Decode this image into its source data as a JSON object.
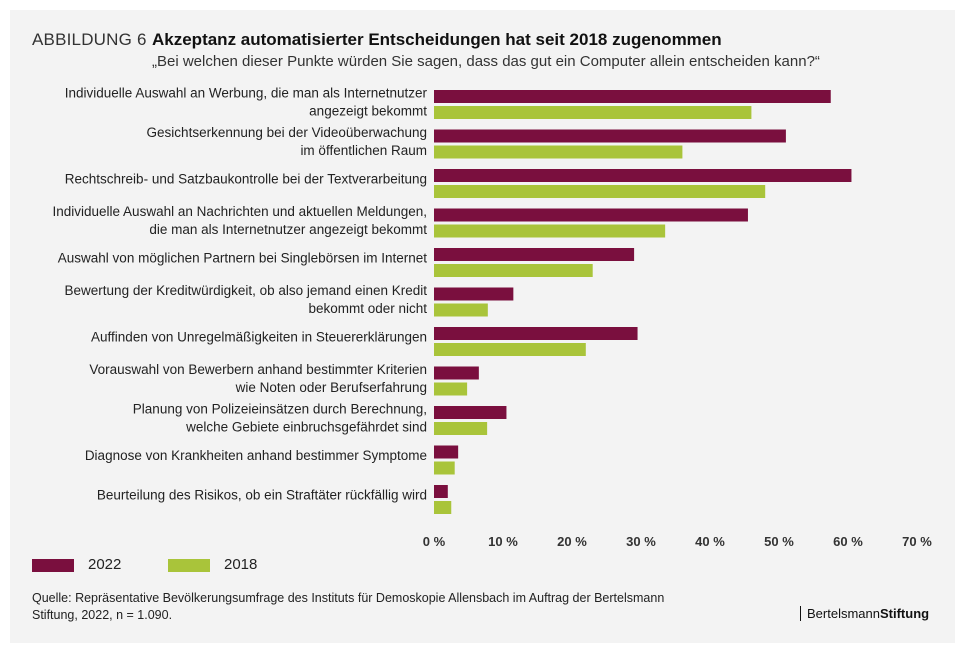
{
  "header": {
    "figure_label": "ABBILDUNG 6",
    "title": "Akzeptanz automatisierter Entscheidungen hat seit 2018 zugenommen",
    "subtitle": "„Bei welchen dieser Punkte würden Sie sagen, dass das gut ein Computer allein entscheiden kann?“"
  },
  "chart_data": {
    "type": "bar",
    "orientation": "horizontal",
    "categories": [
      [
        "Individuelle Auswahl an Werbung, die man als Internetnutzer",
        "angezeigt bekommt"
      ],
      [
        "Gesichtserkennung bei der Videoüberwachung",
        "im öffentlichen Raum"
      ],
      [
        "Rechtschreib- und Satzbaukontrolle bei der Textverarbeitung"
      ],
      [
        "Individuelle Auswahl an Nachrichten und aktuellen Meldungen,",
        "die man als Internetnutzer angezeigt bekommt"
      ],
      [
        "Auswahl von möglichen Partnern bei Singlebörsen im Internet"
      ],
      [
        "Bewertung der Kreditwürdigkeit, ob also jemand einen Kredit",
        "bekommt oder nicht"
      ],
      [
        "Auffinden von Unregelmäßigkeiten in Steuererklärungen"
      ],
      [
        "Vorauswahl von Bewerbern anhand bestimmter Kriterien",
        "wie Noten oder Berufserfahrung"
      ],
      [
        "Planung von Polizeieinsätzen durch Berechnung,",
        "welche Gebiete einbruchsgefährdet sind"
      ],
      [
        "Diagnose von Krankheiten anhand bestimmer Symptome"
      ],
      [
        "Beurteilung des Risikos, ob ein Straftäter rückfällig wird"
      ]
    ],
    "series": [
      {
        "name": "2022",
        "color": "#7a0f3e",
        "values": [
          57.5,
          51,
          60.5,
          45.5,
          29,
          11.5,
          29.5,
          6.5,
          10.5,
          3.5,
          2
        ]
      },
      {
        "name": "2018",
        "color": "#a9c43a",
        "values": [
          46,
          36,
          48,
          33.5,
          23,
          7.8,
          22,
          4.8,
          7.7,
          3,
          2.5
        ]
      }
    ],
    "xlim": [
      0,
      70
    ],
    "ticks": [
      0,
      10,
      20,
      30,
      40,
      50,
      60,
      70
    ],
    "tick_labels": [
      "0 %",
      "10 %",
      "20 %",
      "30 %",
      "40 %",
      "50 %",
      "60 %",
      "70 %"
    ],
    "grid": false,
    "legend_position": "bottom-left"
  },
  "footer": {
    "source": "Quelle: Repräsentative Bevölkerungsumfrage des Instituts für Demoskopie Allensbach im Auftrag der Bertelsmann Stiftung, 2022, n = 1.090.",
    "brand_regular": "Bertelsmann",
    "brand_bold": "Stiftung"
  }
}
